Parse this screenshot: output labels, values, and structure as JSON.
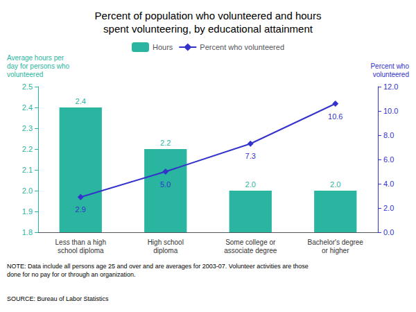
{
  "chart_data": {
    "type": "bar",
    "title": "Percent of population who volunteered and hours\nspent volunteering, by educational attainment",
    "categories": [
      "Less than a high\nschool diploma",
      "High school\ndiploma",
      "Some college or\nassociate degree",
      "Bachelor's degree\nor higher"
    ],
    "series": [
      {
        "name": "Hours",
        "type": "bar",
        "color": "#2ab5a0",
        "values": [
          2.4,
          2.2,
          2.0,
          2.0
        ],
        "value_labels": [
          "2.4",
          "2.2",
          "2.0",
          "2.0"
        ]
      },
      {
        "name": "Percent who volunteered",
        "type": "line",
        "axis": "y2",
        "color": "#3333cc",
        "marker": "diamond",
        "values": [
          2.9,
          5.0,
          7.3,
          10.6
        ],
        "value_labels": [
          "2.9",
          "5.0",
          "7.3",
          "10.6"
        ]
      }
    ],
    "ylabel": "Average hours per\nday for persons who\nvolunteered",
    "y2label": "Percent who\nvolunteered",
    "ylim": [
      1.8,
      2.5
    ],
    "yticks": [
      {
        "value": 1.8,
        "label": "1.8"
      },
      {
        "value": 1.9,
        "label": "1.9"
      },
      {
        "value": 2.0,
        "label": "2.0"
      },
      {
        "value": 2.1,
        "label": "2.1"
      },
      {
        "value": 2.2,
        "label": "2.2"
      },
      {
        "value": 2.3,
        "label": "2.3"
      },
      {
        "value": 2.4,
        "label": "2.4"
      },
      {
        "value": 2.5,
        "label": "2.5"
      }
    ],
    "y2lim": [
      0.0,
      12.0
    ],
    "y2ticks": [
      {
        "value": 0,
        "label": "0.0"
      },
      {
        "value": 2,
        "label": "2.0"
      },
      {
        "value": 4,
        "label": "4.0"
      },
      {
        "value": 6,
        "label": "6.0"
      },
      {
        "value": 8,
        "label": "8.0"
      },
      {
        "value": 10,
        "label": "10.0"
      },
      {
        "value": 12,
        "label": "12.0"
      }
    ],
    "data_labels": true,
    "grid": false,
    "legend": "top",
    "note": "NOTE: Data include all persons age 25 and over and are averages for 2003-07. Volunteer activities are those\ndone for no pay for or through an organization.",
    "source": "SOURCE: Bureau of Labor Statistics"
  }
}
